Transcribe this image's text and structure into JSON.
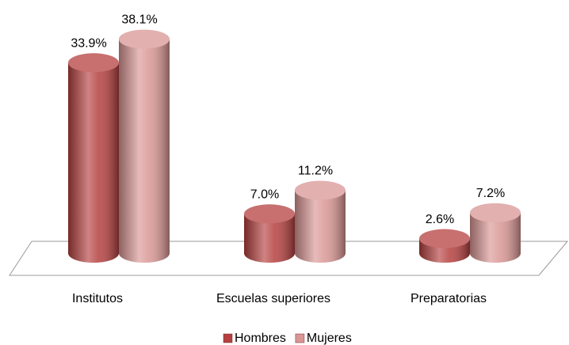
{
  "chart_data": {
    "type": "bar3d",
    "categories": [
      "Institutos",
      "Escuelas superiores",
      "Preparatorias"
    ],
    "series": [
      {
        "name": "Hombres",
        "color": "#b5403f",
        "values": [
          33.9,
          7.0,
          2.6
        ],
        "value_labels": [
          "33.9%",
          "7.0%",
          "2.6%"
        ]
      },
      {
        "name": "Mujeres",
        "color": "#d99694",
        "values": [
          38.1,
          11.2,
          7.2
        ],
        "value_labels": [
          "38.1%",
          "11.2%",
          "7.2%"
        ]
      }
    ],
    "legend": "bottom"
  }
}
